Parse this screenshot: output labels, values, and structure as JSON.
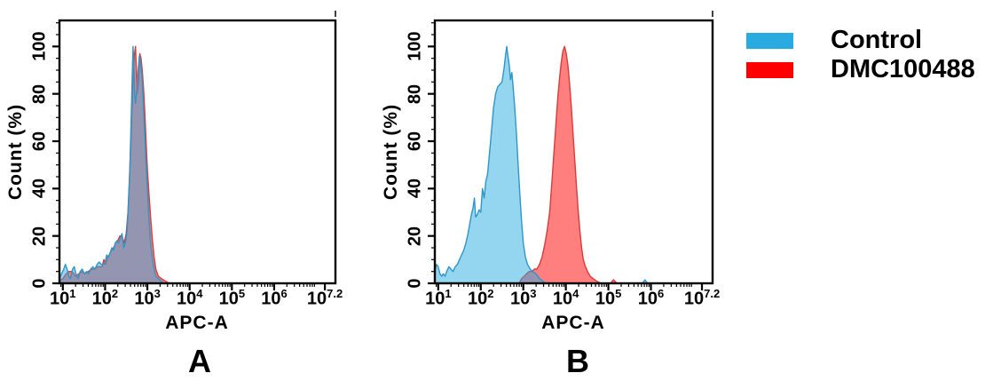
{
  "figure": {
    "background": "#ffffff",
    "legend": {
      "items": [
        {
          "label": "Control",
          "color": "#29abe2"
        },
        {
          "label": "DMC100488",
          "color": "#ff0000"
        }
      ]
    }
  },
  "chart_data": [
    {
      "type": "area",
      "panel": "A",
      "title": "A",
      "xlabel": "APC-A",
      "ylabel": "Count (%)",
      "x_scale": "log10",
      "x_axis_range_log10": [
        0.92,
        7.45
      ],
      "x_major_tick_exponents": [
        "1",
        "2",
        "3",
        "4",
        "5",
        "6",
        "7.2"
      ],
      "ylim": [
        0,
        111
      ],
      "y_ticks": [
        0,
        20,
        40,
        60,
        80,
        100
      ],
      "grid": false,
      "frame_color": "#000000",
      "series": [
        {
          "name": "DMC100488",
          "fill": "rgba(255,0,0,0.5)",
          "stroke": "#d93a3a",
          "points_log10x_pct": [
            [
              0.92,
              1
            ],
            [
              1.0,
              2
            ],
            [
              1.08,
              4
            ],
            [
              1.15,
              5
            ],
            [
              1.22,
              5
            ],
            [
              1.3,
              3
            ],
            [
              1.38,
              4
            ],
            [
              1.45,
              5
            ],
            [
              1.52,
              4
            ],
            [
              1.6,
              5
            ],
            [
              1.68,
              6
            ],
            [
              1.75,
              6
            ],
            [
              1.82,
              7
            ],
            [
              1.88,
              7
            ],
            [
              1.93,
              7
            ],
            [
              1.97,
              10
            ],
            [
              2.01,
              8
            ],
            [
              2.06,
              11
            ],
            [
              2.1,
              12
            ],
            [
              2.15,
              14
            ],
            [
              2.2,
              15
            ],
            [
              2.25,
              17
            ],
            [
              2.3,
              18
            ],
            [
              2.35,
              20
            ],
            [
              2.4,
              20
            ],
            [
              2.45,
              17
            ],
            [
              2.5,
              21
            ],
            [
              2.54,
              30
            ],
            [
              2.57,
              42
            ],
            [
              2.6,
              55
            ],
            [
              2.63,
              70
            ],
            [
              2.66,
              85
            ],
            [
              2.69,
              96
            ],
            [
              2.72,
              100
            ],
            [
              2.74,
              90
            ],
            [
              2.76,
              80
            ],
            [
              2.79,
              85
            ],
            [
              2.82,
              97
            ],
            [
              2.85,
              95
            ],
            [
              2.88,
              90
            ],
            [
              2.91,
              82
            ],
            [
              2.94,
              72
            ],
            [
              2.97,
              60
            ],
            [
              3.0,
              48
            ],
            [
              3.04,
              37
            ],
            [
              3.08,
              27
            ],
            [
              3.12,
              18
            ],
            [
              3.16,
              11
            ],
            [
              3.2,
              6
            ],
            [
              3.26,
              3
            ],
            [
              3.33,
              2
            ],
            [
              3.42,
              1
            ],
            [
              3.52,
              0
            ]
          ]
        },
        {
          "name": "Control",
          "fill": "rgba(41,171,226,0.5)",
          "stroke": "#2f96c8",
          "points_log10x_pct": [
            [
              0.92,
              2
            ],
            [
              0.97,
              4
            ],
            [
              1.02,
              6
            ],
            [
              1.06,
              8
            ],
            [
              1.1,
              6
            ],
            [
              1.14,
              3
            ],
            [
              1.18,
              2
            ],
            [
              1.23,
              6
            ],
            [
              1.27,
              7
            ],
            [
              1.31,
              4
            ],
            [
              1.36,
              2
            ],
            [
              1.41,
              5
            ],
            [
              1.46,
              6
            ],
            [
              1.51,
              4
            ],
            [
              1.56,
              5
            ],
            [
              1.61,
              4
            ],
            [
              1.66,
              6
            ],
            [
              1.71,
              7
            ],
            [
              1.76,
              6
            ],
            [
              1.81,
              8
            ],
            [
              1.86,
              9
            ],
            [
              1.91,
              8
            ],
            [
              1.96,
              8
            ],
            [
              2.0,
              9
            ],
            [
              2.04,
              12
            ],
            [
              2.08,
              11
            ],
            [
              2.12,
              13
            ],
            [
              2.16,
              15
            ],
            [
              2.2,
              14
            ],
            [
              2.24,
              17
            ],
            [
              2.28,
              18
            ],
            [
              2.32,
              17
            ],
            [
              2.36,
              19
            ],
            [
              2.4,
              21
            ],
            [
              2.44,
              15
            ],
            [
              2.48,
              17
            ],
            [
              2.52,
              22
            ],
            [
              2.55,
              32
            ],
            [
              2.58,
              45
            ],
            [
              2.6,
              58
            ],
            [
              2.62,
              72
            ],
            [
              2.64,
              86
            ],
            [
              2.66,
              100
            ],
            [
              2.68,
              93
            ],
            [
              2.7,
              80
            ],
            [
              2.72,
              76
            ],
            [
              2.75,
              82
            ],
            [
              2.78,
              90
            ],
            [
              2.81,
              96
            ],
            [
              2.84,
              93
            ],
            [
              2.87,
              88
            ],
            [
              2.9,
              78
            ],
            [
              2.93,
              66
            ],
            [
              2.96,
              54
            ],
            [
              2.99,
              43
            ],
            [
              3.02,
              33
            ],
            [
              3.05,
              24
            ],
            [
              3.08,
              16
            ],
            [
              3.12,
              10
            ],
            [
              3.16,
              6
            ],
            [
              3.2,
              3
            ],
            [
              3.26,
              2
            ],
            [
              3.32,
              1
            ],
            [
              3.4,
              0
            ]
          ]
        }
      ]
    },
    {
      "type": "area",
      "panel": "B",
      "title": "B",
      "xlabel": "APC-A",
      "ylabel": "Count (%)",
      "x_scale": "log10",
      "x_axis_range_log10": [
        0.92,
        7.45
      ],
      "x_major_tick_exponents": [
        "1",
        "2",
        "3",
        "4",
        "5",
        "6",
        "7.2"
      ],
      "ylim": [
        0,
        111
      ],
      "y_ticks": [
        0,
        20,
        40,
        60,
        80,
        100
      ],
      "grid": false,
      "frame_color": "#000000",
      "series": [
        {
          "name": "DMC100488",
          "fill": "rgba(255,0,0,0.5)",
          "stroke": "#d93a3a",
          "points_log10x_pct": [
            [
              2.9,
              0
            ],
            [
              2.96,
              2
            ],
            [
              3.02,
              3
            ],
            [
              3.08,
              4
            ],
            [
              3.14,
              5
            ],
            [
              3.2,
              5
            ],
            [
              3.26,
              6
            ],
            [
              3.32,
              6
            ],
            [
              3.38,
              8
            ],
            [
              3.44,
              11
            ],
            [
              3.5,
              16
            ],
            [
              3.56,
              22
            ],
            [
              3.62,
              30
            ],
            [
              3.67,
              42
            ],
            [
              3.72,
              55
            ],
            [
              3.77,
              68
            ],
            [
              3.81,
              78
            ],
            [
              3.85,
              86
            ],
            [
              3.89,
              93
            ],
            [
              3.93,
              98
            ],
            [
              3.97,
              100
            ],
            [
              4.01,
              97
            ],
            [
              4.05,
              92
            ],
            [
              4.09,
              84
            ],
            [
              4.13,
              74
            ],
            [
              4.17,
              63
            ],
            [
              4.21,
              52
            ],
            [
              4.25,
              41
            ],
            [
              4.29,
              31
            ],
            [
              4.33,
              22
            ],
            [
              4.37,
              15
            ],
            [
              4.41,
              10
            ],
            [
              4.46,
              7
            ],
            [
              4.51,
              5
            ],
            [
              4.57,
              3
            ],
            [
              4.64,
              2
            ],
            [
              4.72,
              1
            ],
            [
              4.82,
              0
            ],
            [
              5.05,
              0
            ],
            [
              5.12,
              1.5
            ],
            [
              5.2,
              0
            ]
          ]
        },
        {
          "name": "Control",
          "fill": "rgba(41,171,226,0.5)",
          "stroke": "#2f96c8",
          "points_log10x_pct": [
            [
              0.92,
              5
            ],
            [
              0.96,
              8
            ],
            [
              1.0,
              7
            ],
            [
              1.04,
              4
            ],
            [
              1.08,
              3
            ],
            [
              1.12,
              4
            ],
            [
              1.16,
              3
            ],
            [
              1.2,
              5
            ],
            [
              1.25,
              7
            ],
            [
              1.3,
              6
            ],
            [
              1.35,
              5
            ],
            [
              1.4,
              7
            ],
            [
              1.45,
              8
            ],
            [
              1.5,
              10
            ],
            [
              1.55,
              12
            ],
            [
              1.6,
              14
            ],
            [
              1.65,
              17
            ],
            [
              1.7,
              21
            ],
            [
              1.74,
              25
            ],
            [
              1.78,
              29
            ],
            [
              1.82,
              32
            ],
            [
              1.85,
              36
            ],
            [
              1.88,
              28
            ],
            [
              1.92,
              29
            ],
            [
              1.96,
              31
            ],
            [
              2.0,
              30
            ],
            [
              2.04,
              40
            ],
            [
              2.08,
              36
            ],
            [
              2.12,
              43
            ],
            [
              2.16,
              46
            ],
            [
              2.2,
              54
            ],
            [
              2.25,
              64
            ],
            [
              2.3,
              74
            ],
            [
              2.35,
              80
            ],
            [
              2.4,
              83
            ],
            [
              2.45,
              84
            ],
            [
              2.5,
              85
            ],
            [
              2.55,
              91
            ],
            [
              2.58,
              96
            ],
            [
              2.61,
              100
            ],
            [
              2.64,
              96
            ],
            [
              2.67,
              92
            ],
            [
              2.7,
              86
            ],
            [
              2.73,
              89
            ],
            [
              2.76,
              83
            ],
            [
              2.8,
              74
            ],
            [
              2.84,
              63
            ],
            [
              2.88,
              50
            ],
            [
              2.92,
              37
            ],
            [
              2.96,
              26
            ],
            [
              3.0,
              17
            ],
            [
              3.05,
              11
            ],
            [
              3.1,
              8
            ],
            [
              3.16,
              6
            ],
            [
              3.22,
              5
            ],
            [
              3.3,
              4
            ],
            [
              3.38,
              2
            ],
            [
              3.46,
              1
            ],
            [
              3.52,
              0
            ],
            [
              5.8,
              0
            ],
            [
              5.86,
              1.5
            ],
            [
              5.92,
              0
            ]
          ]
        }
      ]
    }
  ]
}
